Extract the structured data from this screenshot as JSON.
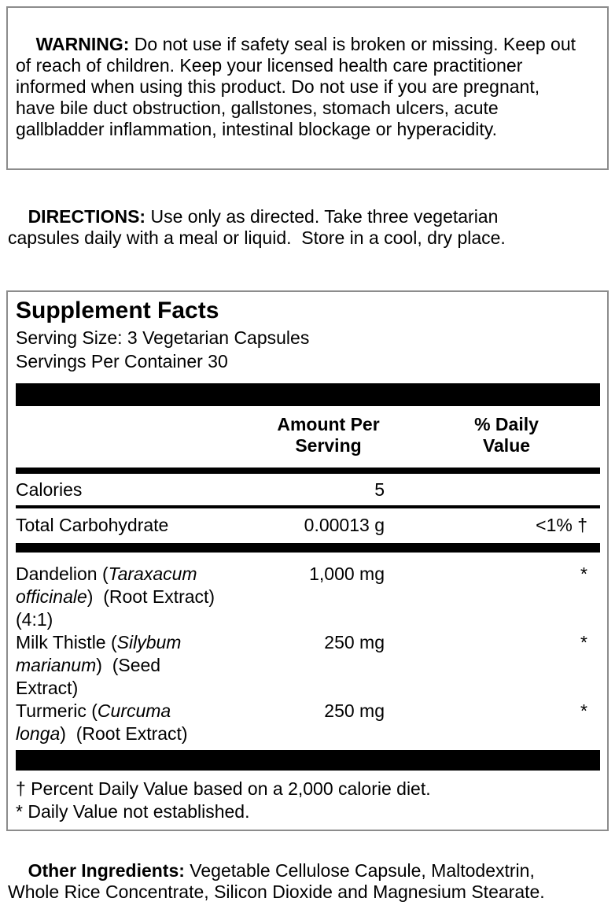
{
  "warning": {
    "label": "WARNING:",
    "text": " Do not use if safety seal is broken or missing. Keep out\nof reach of children. Keep your licensed health care practitioner\ninformed when using this product. Do not use if you are pregnant,\nhave bile duct obstruction, gallstones, stomach ulcers, acute\ngallbladder inflammation, intestinal blockage or hyperacidity."
  },
  "directions": {
    "label": "DIRECTIONS:",
    "text": " Use only as directed. Take three vegetarian\ncapsules daily with a meal or liquid.  Store in a cool, dry place."
  },
  "supplement_facts": {
    "title": "Supplement Facts",
    "serving_size": "Serving Size: 3 Vegetarian Capsules",
    "servings_per_container": "Servings Per Container 30",
    "columns": {
      "amount": "Amount Per\nServing",
      "daily_value": "% Daily\nValue"
    },
    "calories": {
      "name": "Calories",
      "amount": "5"
    },
    "carbohydrate": {
      "name": "Total Carbohydrate",
      "amount": "0.00013 g",
      "dv": "<1% †"
    },
    "ingredients": [
      {
        "name_pre": "Dandelion (",
        "name_latin": "Taraxacum\nofficinale",
        "name_post": ")  (Root Extract)\n(4:1)",
        "amount": "1,000 mg",
        "dv": "*"
      },
      {
        "name_pre": "Milk Thistle (",
        "name_latin": "Silybum\nmarianum",
        "name_post": ")  (Seed\nExtract)",
        "amount": "250 mg",
        "dv": "*"
      },
      {
        "name_pre": "Turmeric (",
        "name_latin": "Curcuma\nlonga",
        "name_post": ")  (Root Extract)",
        "amount": "250 mg",
        "dv": "*"
      }
    ],
    "footnotes": [
      "† Percent Daily Value based on a 2,000 calorie diet.",
      "* Daily Value not established."
    ]
  },
  "other_ingredients": {
    "label": "Other Ingredients:",
    "text": " Vegetable Cellulose Capsule, Maltodextrin,\nWhole Rice Concentrate, Silicon Dioxide and Magnesium Stearate."
  }
}
